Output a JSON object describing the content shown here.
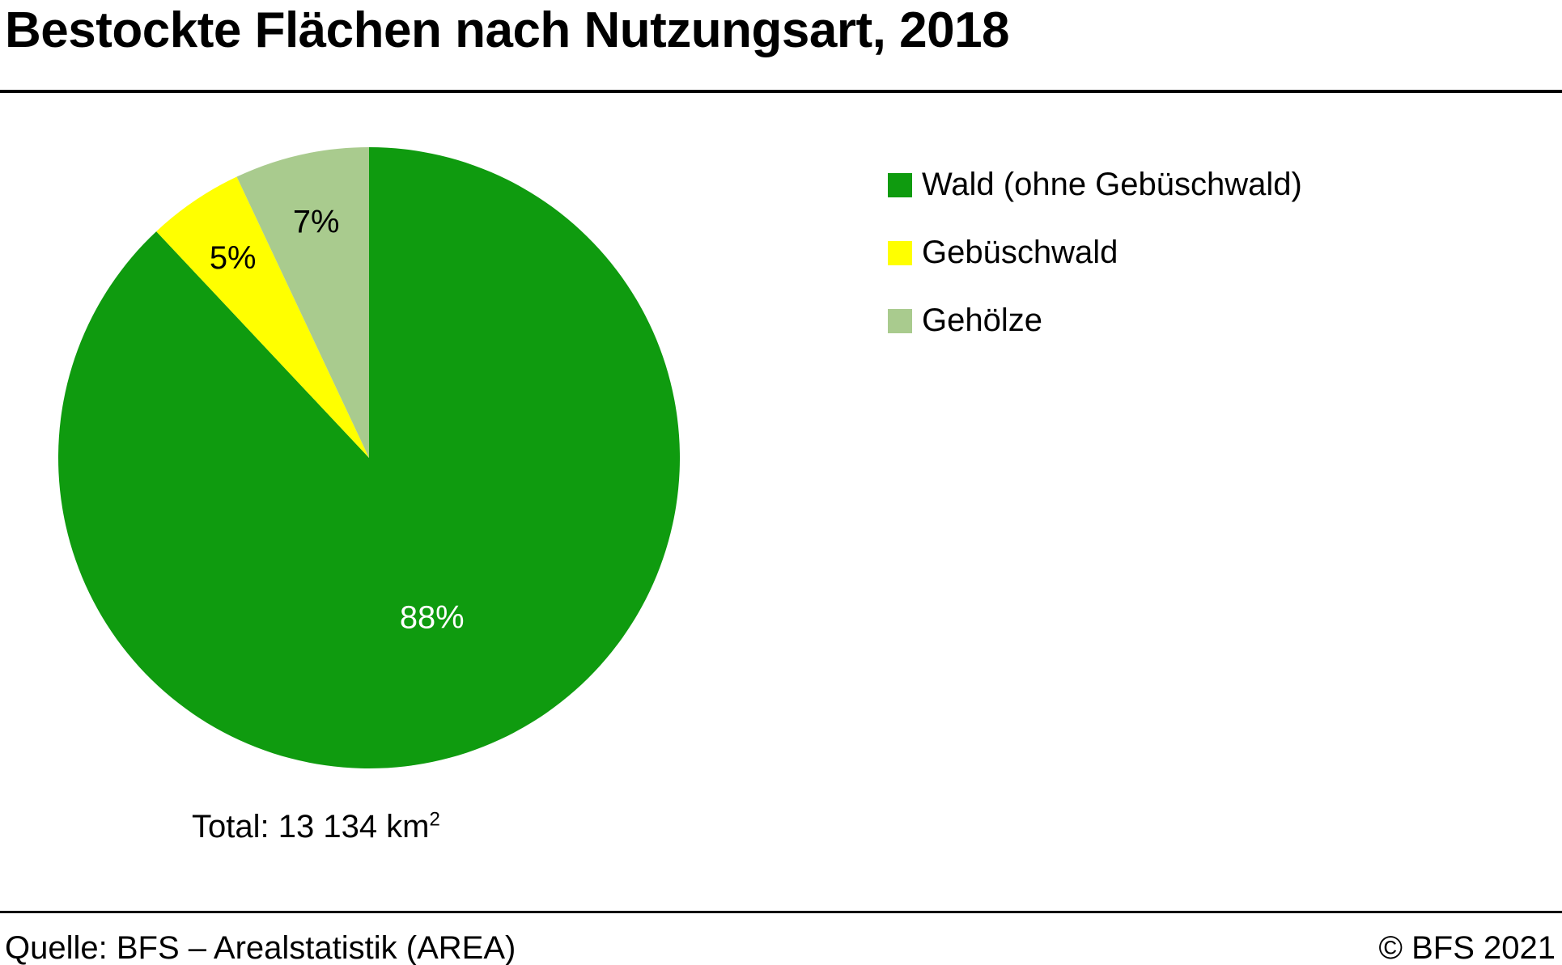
{
  "header": {
    "title": "Bestockte Flächen nach Nutzungsart, 2018"
  },
  "chart_data": {
    "type": "pie",
    "title": "Bestockte Flächen nach Nutzungsart, 2018",
    "unit": "%",
    "start_angle_deg": 0,
    "direction": "clockwise",
    "legend_position": "right",
    "slices": [
      {
        "label": "Wald (ohne Gebüschwald)",
        "value": 88,
        "display": "88%",
        "color": "#0f9b0f",
        "label_color": "#ffffff"
      },
      {
        "label": "Gebüschwald",
        "value": 5,
        "display": "5%",
        "color": "#ffff00",
        "label_color": "#000000"
      },
      {
        "label": "Gehölze",
        "value": 7,
        "display": "7%",
        "color": "#a9cb8e",
        "label_color": "#000000"
      }
    ],
    "total": {
      "text": "Total: 13 134 km",
      "superscript": "2"
    }
  },
  "footer": {
    "source": "Quelle: BFS – Arealstatistik (AREA)",
    "copyright": "© BFS 2021"
  }
}
